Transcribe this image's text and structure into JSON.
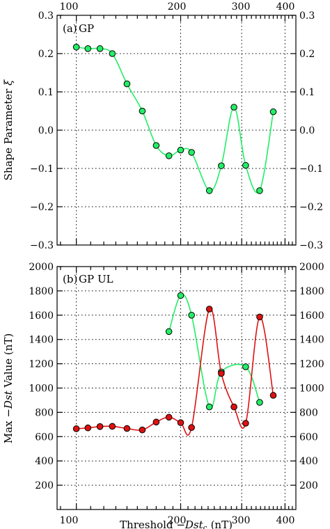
{
  "colors": {
    "gp": "#22ee66",
    "ul": "#dd1111",
    "marker_edge": "#000000"
  },
  "xaxis": {
    "type": "log",
    "range": [
      88,
      430
    ],
    "ticks": [
      100,
      200,
      300,
      400
    ],
    "tick_labels": [
      "100",
      "200",
      "300",
      "400"
    ],
    "label_prefix": "Threshold ",
    "label_var": "−Dst",
    "label_sub": "c",
    "label_suffix": " (nT)"
  },
  "chart_data": [
    {
      "type": "line",
      "panel_label": "(a)",
      "ylabel_text": "Shape Parameter ",
      "ylabel_symbol": "ξ",
      "ylim": [
        -0.3,
        0.3
      ],
      "y_ticks": [
        -0.3,
        -0.2,
        -0.1,
        0.0,
        0.1,
        0.2,
        0.3
      ],
      "y_tick_labels": [
        "−0.3",
        "−0.2",
        "−0.1",
        "0.0",
        "0.1",
        "0.2",
        "0.3"
      ],
      "grid": true,
      "series": [
        {
          "name": "GP",
          "color_key": "gp",
          "x": [
            100,
            108,
            117,
            127,
            140,
            155,
            170,
            185,
            200,
            215,
            242,
            262,
            285,
            308,
            338,
            370
          ],
          "y": [
            0.217,
            0.213,
            0.213,
            0.2,
            0.121,
            0.05,
            -0.04,
            -0.067,
            -0.052,
            -0.058,
            -0.158,
            -0.093,
            0.06,
            -0.092,
            -0.158,
            0.048
          ]
        }
      ]
    },
    {
      "type": "line",
      "panel_label": "(b)",
      "ylabel_prefix": "Max ",
      "ylabel_var": "−Dst",
      "ylabel_suffix": " Value (nT)",
      "ylim": [
        0,
        2000
      ],
      "y_ticks": [
        200,
        400,
        600,
        800,
        1000,
        1200,
        1400,
        1600,
        1800,
        2000
      ],
      "y_tick_labels": [
        "200",
        "400",
        "600",
        "800",
        "1000",
        "1200",
        "1400",
        "1600",
        "1800",
        "2000"
      ],
      "grid": true,
      "series": [
        {
          "name": "GP",
          "color_key": "gp",
          "x": [
            185,
            200,
            215,
            242,
            262,
            308,
            338
          ],
          "y": [
            1465,
            1762,
            1600,
            845,
            1133,
            1175,
            882
          ]
        },
        {
          "name": "UL",
          "color_key": "ul",
          "x": [
            100,
            108,
            117,
            127,
            140,
            155,
            170,
            185,
            200,
            215,
            242,
            262,
            285,
            308,
            338,
            370
          ],
          "y": [
            665,
            672,
            683,
            685,
            667,
            655,
            720,
            760,
            715,
            675,
            1650,
            1120,
            845,
            710,
            1585,
            940
          ]
        }
      ]
    }
  ]
}
